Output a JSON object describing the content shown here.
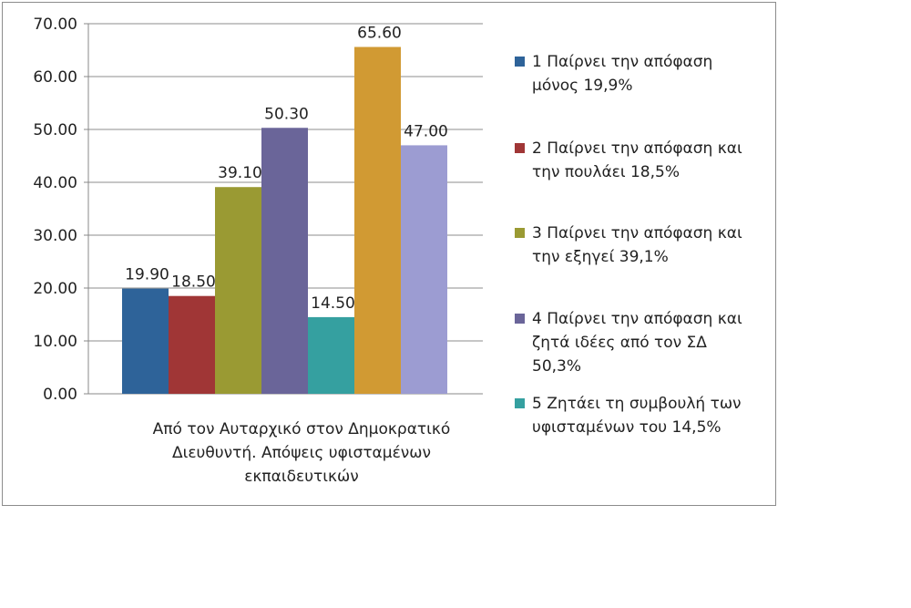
{
  "chart_data": {
    "type": "bar",
    "categories": [
      "Από τον Αυταρχικό στον Δημοκρατικό Διευθυντή. Απόψεις υφισταμένων εκπαιδευτικών"
    ],
    "series": [
      {
        "name": "1 Παίρνει την απόφαση μόνος 19,9%",
        "values": [
          19.9
        ],
        "label": "19.90",
        "color": "#2e6399"
      },
      {
        "name": "2 Παίρνει την απόφαση και την πουλάει 18,5%",
        "values": [
          18.5
        ],
        "label": "18.50",
        "color": "#a03636"
      },
      {
        "name": "3 Παίρνει την απόφαση και την εξηγεί 39,1%",
        "values": [
          39.1
        ],
        "label": "39.10",
        "color": "#9a9a33"
      },
      {
        "name": "4 Παίρνει την απόφαση και ζητά ιδέες από τον ΣΔ 50,3%",
        "values": [
          50.3
        ],
        "label": "50.30",
        "color": "#6a6599"
      },
      {
        "name": "5 Ζητάει τη συμβουλή των υφισταμένων του 14,5%",
        "values": [
          14.5
        ],
        "label": "14.50",
        "color": "#35a0a0"
      },
      {
        "name": "",
        "values": [
          65.6
        ],
        "label": "65.60",
        "color": "#d19a33"
      },
      {
        "name": "",
        "values": [
          47.0
        ],
        "label": "47.00",
        "color": "#9c9cd2"
      }
    ],
    "ylim": [
      0,
      70
    ],
    "yticks": [
      "0.00",
      "10.00",
      "20.00",
      "30.00",
      "40.00",
      "50.00",
      "60.00",
      "70.00"
    ],
    "grid": true,
    "legend_position": "right",
    "xlabel": "",
    "ylabel": "",
    "title": ""
  },
  "legend": [
    {
      "lines": [
        "1 Παίρνει την απόφαση",
        "μόνος 19,9%"
      ],
      "color": "#2e6399"
    },
    {
      "lines": [
        "2 Παίρνει την απόφαση και",
        "την πουλάει 18,5%"
      ],
      "color": "#a03636"
    },
    {
      "lines": [
        "3 Παίρνει την απόφαση και",
        "την εξηγεί 39,1%"
      ],
      "color": "#9a9a33"
    },
    {
      "lines": [
        "4 Παίρνει την απόφαση και",
        "ζητά ιδέες από τον ΣΔ",
        "50,3%"
      ],
      "color": "#6a6599"
    },
    {
      "lines": [
        "5 Ζητάει τη συμβουλή των",
        "υφισταμένων του 14,5%"
      ],
      "color": "#35a0a0"
    }
  ],
  "category_label_lines": [
    "Από τον Αυταρχικό στον Δημοκρατικό",
    "Διευθυντή. Απόψεις υφισταμένων",
    "εκπαιδευτικών"
  ]
}
